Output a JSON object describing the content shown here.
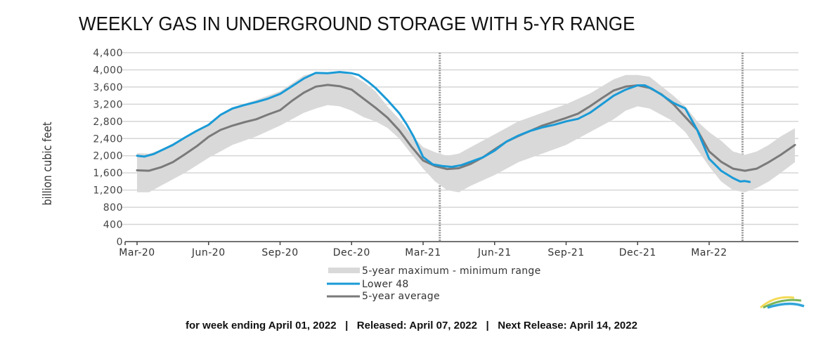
{
  "title": "WEEKLY GAS IN UNDERGROUND STORAGE WITH 5-YR RANGE",
  "footer": {
    "week_ending": "for week ending April 01, 2022",
    "separator": "|",
    "released": "Released: April 07, 2022",
    "next_release": "Next Release: April 14, 2022"
  },
  "logo": "eia-logo-icon",
  "chart_data": {
    "type": "line",
    "title": "WEEKLY GAS IN UNDERGROUND STORAGE WITH 5-YR RANGE",
    "xlabel": "",
    "ylabel": "billion cubic feet",
    "ylim": [
      0,
      4400
    ],
    "yticks": [
      0,
      400,
      800,
      1200,
      1600,
      2000,
      2400,
      2800,
      3200,
      3600,
      4000,
      4400
    ],
    "ytick_labels": [
      "0",
      "400",
      "800",
      "1,200",
      "1,600",
      "2,000",
      "2,400",
      "2,800",
      "3,200",
      "3,600",
      "4,000",
      "4,400"
    ],
    "x_unit": "months since Mar-20",
    "xlim": [
      0,
      27.6
    ],
    "xticks": [
      0,
      3,
      6,
      9,
      12,
      15,
      18,
      21,
      24
    ],
    "xtick_labels": [
      "Mar-20",
      "Jun-20",
      "Sep-20",
      "Dec-20",
      "Mar-21",
      "Jun-21",
      "Sep-21",
      "Dec-21",
      "Mar-22"
    ],
    "grid": true,
    "reference_lines": [
      12.7,
      25.4
    ],
    "legend": {
      "position": "bottom",
      "entries": [
        "5-year maximum - minimum range",
        "Lower 48",
        "5-year average"
      ]
    },
    "colors": {
      "range": "#d9d9d9",
      "lower48": "#1a9ad6",
      "avg": "#7a7a7a"
    },
    "range": {
      "name": "5-year maximum - minimum range",
      "x": [
        0,
        0.5,
        1,
        2,
        3,
        4,
        5,
        6,
        7,
        7.5,
        8,
        8.5,
        9,
        9.5,
        10,
        10.5,
        11,
        11.5,
        12,
        12.5,
        13,
        13.5,
        14,
        15,
        16,
        17,
        18,
        19,
        20,
        20.5,
        21,
        21.5,
        22,
        22.5,
        23,
        23.5,
        24,
        24.5,
        25,
        25.5,
        26,
        26.5,
        27,
        27.6
      ],
      "max": [
        2060,
        2050,
        2140,
        2440,
        2740,
        3120,
        3300,
        3500,
        3870,
        3940,
        3930,
        3940,
        3880,
        3720,
        3500,
        3150,
        2850,
        2500,
        2200,
        2080,
        2000,
        2050,
        2200,
        2500,
        2800,
        3000,
        3200,
        3450,
        3780,
        3880,
        3880,
        3840,
        3620,
        3400,
        3150,
        2800,
        2550,
        2350,
        2100,
        2020,
        2100,
        2250,
        2450,
        2640
      ],
      "min": [
        1150,
        1150,
        1300,
        1600,
        1950,
        2250,
        2450,
        2700,
        3000,
        3100,
        3180,
        3150,
        3050,
        2900,
        2800,
        2650,
        2400,
        2050,
        1700,
        1400,
        1200,
        1150,
        1300,
        1550,
        1850,
        2050,
        2250,
        2550,
        2850,
        3050,
        3150,
        3100,
        2950,
        2800,
        2550,
        2150,
        1750,
        1400,
        1200,
        1150,
        1250,
        1400,
        1600,
        1850
      ]
    },
    "series": [
      {
        "name": "Lower 48",
        "x": [
          0,
          0.3,
          0.7,
          1,
          1.5,
          2,
          2.5,
          3,
          3.5,
          4,
          4.5,
          5,
          5.5,
          6,
          6.5,
          7,
          7.5,
          8,
          8.5,
          9,
          9.3,
          9.7,
          10,
          10.5,
          11,
          11.3,
          11.6,
          12,
          12.4,
          12.8,
          13.2,
          13.6,
          14,
          14.5,
          15,
          15.5,
          16,
          16.5,
          17,
          17.5,
          18,
          18.5,
          19,
          19.5,
          20,
          20.5,
          21,
          21.3,
          21.6,
          22,
          22.5,
          23,
          23.5,
          24,
          24.5,
          25,
          25.3,
          25.5,
          25.7
        ],
        "values": [
          2000,
          1980,
          2040,
          2120,
          2250,
          2420,
          2580,
          2720,
          2950,
          3100,
          3180,
          3250,
          3330,
          3440,
          3620,
          3800,
          3930,
          3920,
          3950,
          3920,
          3880,
          3720,
          3580,
          3300,
          2990,
          2740,
          2450,
          1970,
          1800,
          1760,
          1740,
          1780,
          1860,
          1960,
          2120,
          2330,
          2470,
          2580,
          2660,
          2720,
          2800,
          2860,
          3000,
          3200,
          3400,
          3540,
          3640,
          3640,
          3560,
          3420,
          3230,
          3100,
          2600,
          1930,
          1650,
          1480,
          1400,
          1410,
          1390
        ]
      },
      {
        "name": "5-year average",
        "x": [
          0,
          0.5,
          1,
          1.5,
          2,
          2.5,
          3,
          3.5,
          4,
          4.5,
          5,
          5.5,
          6,
          6.5,
          7,
          7.5,
          8,
          8.5,
          9,
          9.5,
          10,
          10.5,
          11,
          11.5,
          12,
          12.5,
          13,
          13.5,
          14,
          14.5,
          15,
          15.5,
          16,
          16.5,
          17,
          17.5,
          18,
          18.5,
          19,
          19.5,
          20,
          20.5,
          21,
          21.5,
          22,
          22.5,
          23,
          23.5,
          24,
          24.5,
          25,
          25.5,
          26,
          26.5,
          27,
          27.6
        ],
        "values": [
          1660,
          1650,
          1730,
          1850,
          2030,
          2220,
          2440,
          2600,
          2700,
          2780,
          2850,
          2960,
          3060,
          3280,
          3470,
          3610,
          3650,
          3620,
          3540,
          3330,
          3120,
          2890,
          2590,
          2220,
          1890,
          1760,
          1690,
          1710,
          1810,
          1960,
          2150,
          2330,
          2460,
          2580,
          2700,
          2790,
          2880,
          2980,
          3150,
          3340,
          3520,
          3610,
          3640,
          3580,
          3430,
          3200,
          2900,
          2600,
          2100,
          1860,
          1700,
          1650,
          1700,
          1850,
          2020,
          2250
        ]
      }
    ]
  }
}
